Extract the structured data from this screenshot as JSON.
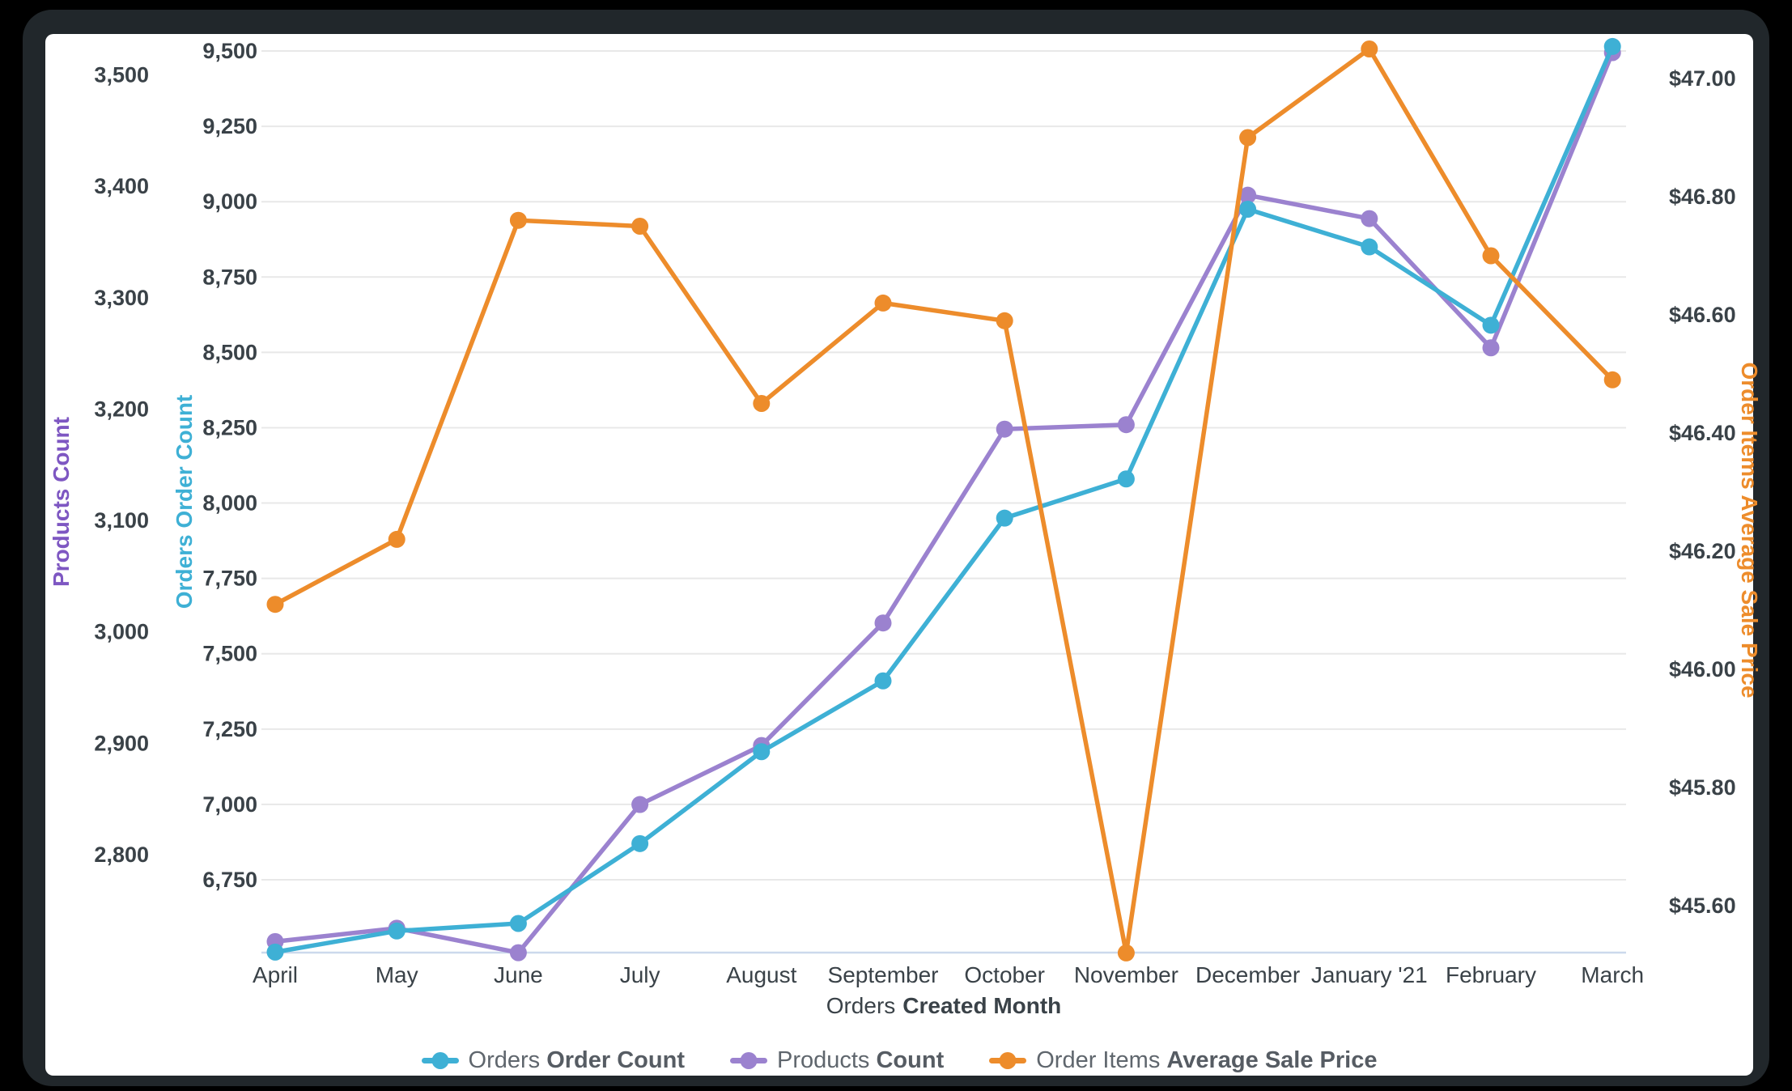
{
  "window": {
    "background_color": "#000000",
    "frame_color": "#21272b",
    "card_color": "#ffffff"
  },
  "chart_data": {
    "type": "line",
    "title": "",
    "grid": true,
    "legend_position": "bottom",
    "x_axis": {
      "label_normal": "Orders",
      "label_bold": "Created Month",
      "label_color": "#3a4248",
      "categories": [
        "April",
        "May",
        "June",
        "July",
        "August",
        "September",
        "October",
        "November",
        "December",
        "January '21",
        "February",
        "March"
      ]
    },
    "y_axes": [
      {
        "id": "products",
        "label": "Products Count",
        "label_color": "#7e57c2",
        "tick_color": "#3a4248",
        "format": "number",
        "ticks": [
          2800,
          2900,
          3000,
          3100,
          3200,
          3300,
          3400,
          3500
        ]
      },
      {
        "id": "orders",
        "label": "Orders Order Count",
        "label_color": "#3eb0d5",
        "tick_color": "#3a4248",
        "format": "number",
        "ticks": [
          6750,
          7000,
          7250,
          7500,
          7750,
          8000,
          8250,
          8500,
          8750,
          9000,
          9250,
          9500
        ]
      },
      {
        "id": "price",
        "label": "Order Items Average Sale Price",
        "label_color": "#ed8c2b",
        "tick_color": "#3a4248",
        "format": "currency",
        "ticks": [
          45.6,
          45.8,
          46.0,
          46.2,
          46.4,
          46.6,
          46.8,
          47.0
        ]
      }
    ],
    "series": [
      {
        "name": "Orders Order Count",
        "legend_normal": "Orders ",
        "legend_bold": "Order Count",
        "color": "#3eb0d5",
        "axis": "orders",
        "values": [
          6510,
          6580,
          6605,
          6870,
          7175,
          7410,
          7950,
          8080,
          8975,
          8850,
          8590,
          9515
        ]
      },
      {
        "name": "Products Count",
        "legend_normal": "Products ",
        "legend_bold": "Count",
        "color": "#9b82cf",
        "axis": "products",
        "values": [
          2722,
          2734,
          2712,
          2845,
          2898,
          3008,
          3182,
          3186,
          3392,
          3371,
          3255,
          3520
        ]
      },
      {
        "name": "Order Items Average Sale Price",
        "legend_normal": "Order Items ",
        "legend_bold": "Average Sale Price",
        "color": "#ed8c2b",
        "axis": "price",
        "values": [
          46.11,
          46.22,
          46.76,
          46.75,
          46.45,
          46.62,
          46.59,
          45.52,
          46.9,
          47.05,
          46.7,
          46.49
        ]
      }
    ],
    "grid_color": "#e8e8e8",
    "baseline_color": "#ccd9ec"
  }
}
